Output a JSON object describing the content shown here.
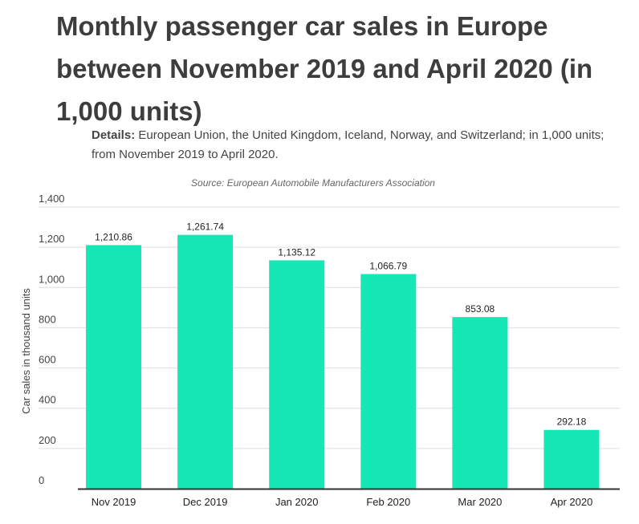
{
  "chart_data": {
    "type": "bar",
    "title": "Monthly passenger car sales in Europe between November 2019 and April 2020 (in 1,000 units)",
    "details_label": "Details:",
    "details_text": " European Union, the United Kingdom, Iceland, Norway, and Switzerland; in 1,000 units; from November 2019 to April 2020.",
    "source": "Source: European Automobile Manufacturers Association",
    "ylabel": "Car sales in thousand units",
    "xlabel": "",
    "ylim": [
      0,
      1400
    ],
    "yticks": [
      0,
      200,
      400,
      600,
      800,
      1000,
      1200,
      1400
    ],
    "ytick_labels": [
      "0",
      "200",
      "400",
      "600",
      "800",
      "1,000",
      "1,200",
      "1,400"
    ],
    "categories": [
      "Nov 2019",
      "Dec 2019",
      "Jan 2020",
      "Feb 2020",
      "Mar 2020",
      "Apr 2020"
    ],
    "values": [
      1210.86,
      1261.74,
      1135.12,
      1066.79,
      853.08,
      292.18
    ],
    "value_labels": [
      "1,210.86",
      "1,261.74",
      "1,135.12",
      "1,066.79",
      "853.08",
      "292.18"
    ],
    "bar_color": "#15e8b5",
    "grid": true,
    "legend": "none"
  }
}
